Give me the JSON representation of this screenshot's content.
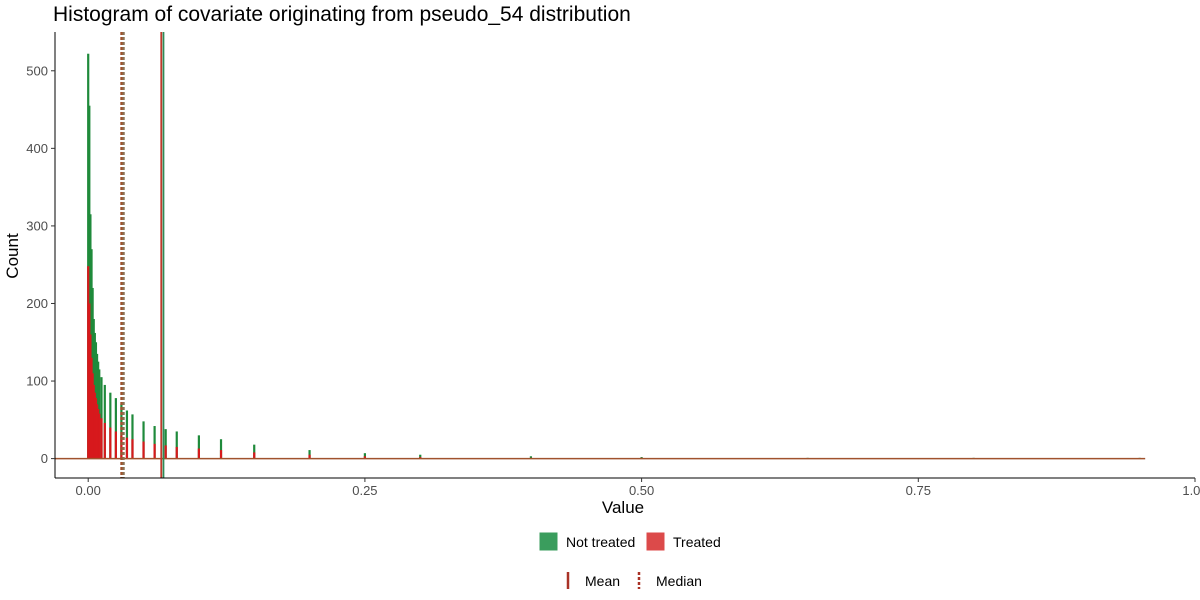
{
  "chart_data": {
    "type": "bar",
    "title": "Histogram of covariate originating from pseudo_54 distribution",
    "xlabel": "Value",
    "ylabel": "Count",
    "xlim": [
      -0.03,
      1.0
    ],
    "ylim": [
      -25,
      550
    ],
    "x_ticks": [
      0.0,
      0.25,
      0.5,
      0.75,
      1.0
    ],
    "x_tick_labels": [
      "0.00",
      "0.25",
      "0.50",
      "0.75",
      "1.00"
    ],
    "y_ticks": [
      0,
      100,
      200,
      300,
      400,
      500
    ],
    "y_tick_labels": [
      "0",
      "100",
      "200",
      "300",
      "400",
      "500"
    ],
    "grid": false,
    "legend_position": "bottom",
    "series": [
      {
        "name": "Not treated",
        "color": "#1f8a3b",
        "bin_centers": [
          0.0,
          0.001,
          0.002,
          0.003,
          0.004,
          0.005,
          0.006,
          0.007,
          0.008,
          0.009,
          0.01,
          0.012,
          0.015,
          0.02,
          0.025,
          0.03,
          0.035,
          0.04,
          0.05,
          0.06,
          0.07,
          0.08,
          0.1,
          0.12,
          0.15,
          0.2,
          0.25,
          0.3,
          0.4,
          0.5,
          0.65,
          0.8,
          0.95
        ],
        "values": [
          522,
          455,
          315,
          270,
          220,
          180,
          162,
          150,
          135,
          125,
          115,
          105,
          95,
          85,
          78,
          70,
          62,
          57,
          48,
          42,
          38,
          35,
          30,
          25,
          18,
          11,
          7,
          5,
          3,
          2,
          1,
          1,
          1
        ]
      },
      {
        "name": "Treated",
        "color": "#d7191c",
        "bin_centers": [
          0.0,
          0.001,
          0.002,
          0.003,
          0.004,
          0.005,
          0.006,
          0.007,
          0.008,
          0.009,
          0.01,
          0.012,
          0.015,
          0.02,
          0.025,
          0.03,
          0.035,
          0.04,
          0.05,
          0.06,
          0.07,
          0.08,
          0.1,
          0.12,
          0.15,
          0.2,
          0.25,
          0.3,
          0.4,
          0.5,
          0.65,
          0.8,
          0.95
        ],
        "values": [
          248,
          200,
          160,
          130,
          110,
          95,
          85,
          78,
          70,
          64,
          58,
          52,
          46,
          40,
          35,
          30,
          27,
          25,
          22,
          19,
          17,
          15,
          13,
          11,
          8,
          5,
          3,
          2,
          1,
          1,
          0,
          0,
          0
        ]
      }
    ],
    "reference_lines": [
      {
        "label": "Mean",
        "group": "Not treated",
        "x": 0.068,
        "style": "solid",
        "color": "#2e8b57"
      },
      {
        "label": "Mean",
        "group": "Treated",
        "x": 0.066,
        "style": "solid",
        "color": "#c0392b"
      },
      {
        "label": "Median",
        "group": "Not treated",
        "x": 0.032,
        "style": "dashed",
        "color": "#8b7355"
      },
      {
        "label": "Median",
        "group": "Treated",
        "x": 0.03,
        "style": "dashed",
        "color": "#a0522d"
      }
    ],
    "baseline": {
      "x_start": -0.03,
      "x_end": 0.955,
      "y": 0,
      "color": "#a0522d"
    },
    "legend_fill": [
      {
        "label": "Not treated",
        "color": "#3a9d5d"
      },
      {
        "label": "Treated",
        "color": "#dc4a4a"
      }
    ],
    "legend_lines": [
      {
        "label": "Mean",
        "style": "solid",
        "color": "#a93226"
      },
      {
        "label": "Median",
        "style": "dashed",
        "color": "#a93226"
      }
    ]
  }
}
